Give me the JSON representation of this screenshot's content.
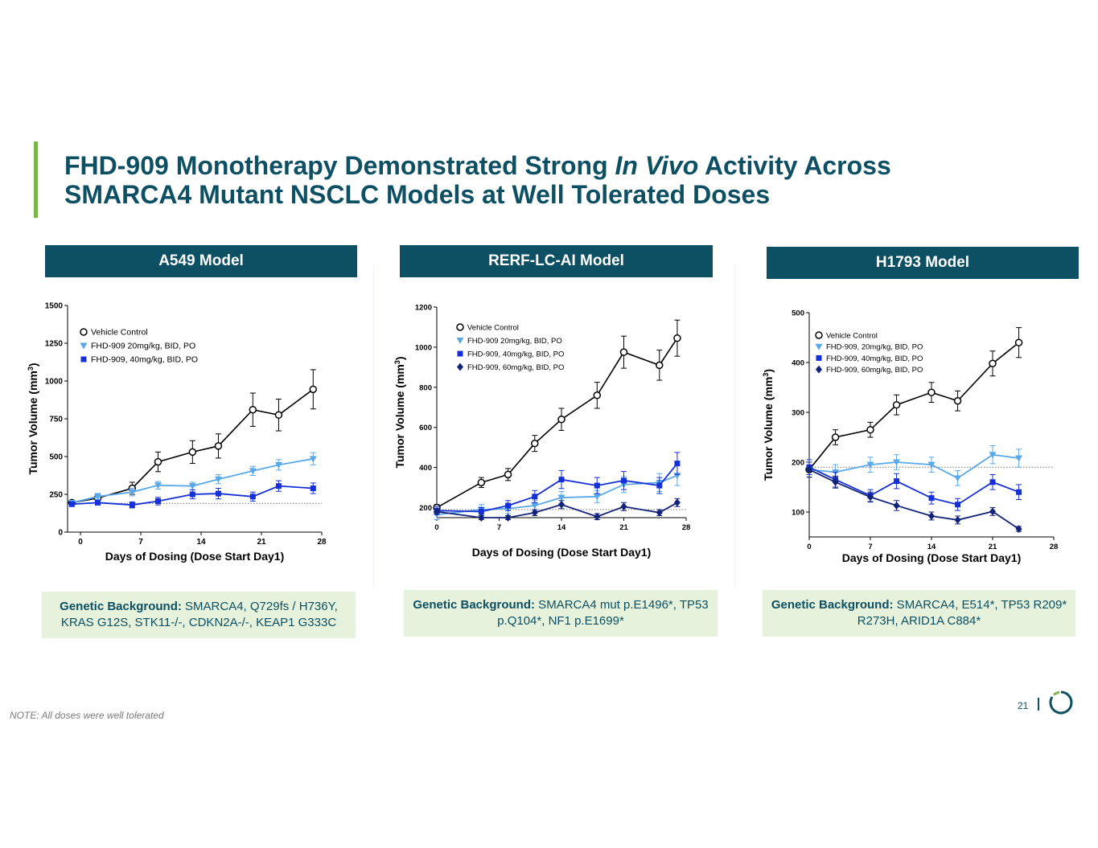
{
  "title": {
    "line1_a": "FHD-909 Monotherapy Demonstrated Strong ",
    "line1_em": "In Vivo",
    "line1_b": " Activity Across",
    "line2": "SMARCA4 Mutant NSCLC Models at Well Tolerated Doses"
  },
  "colors": {
    "brand_teal": "#0d4f63",
    "accent_green": "#7ab648",
    "panel_bg": "#e6f2dc",
    "vehicle": "#000000",
    "dose20": "#5aa8e8",
    "dose40": "#1530d8",
    "dose60": "#13237a"
  },
  "panels": [
    {
      "header": "A549 Model",
      "genetic_label": "Genetic Background:",
      "genetic_text": " SMARCA4, Q729fs / H736Y, KRAS G12S, STK11-/-, CDKN2A-/-, KEAP1 G333C"
    },
    {
      "header": "RERF-LC-AI Model",
      "genetic_label": "Genetic Background:",
      "genetic_text": " SMARCA4 mut p.E1496*, TP53 p.Q104*, NF1 p.E1699*"
    },
    {
      "header": "H1793 Model",
      "genetic_label": "Genetic Background:",
      "genetic_text": " SMARCA4, E514*, TP53 R209* R273H, ARID1A C884*"
    }
  ],
  "note": "NOTE: All doses were well tolerated",
  "page_number": "21",
  "icons": {
    "logo": "ring-logo-icon"
  },
  "chart_data": [
    {
      "type": "line",
      "xlabel": "Days of Dosing (Dose Start Day1)",
      "ylabel": "Tumor Volume (mm",
      "ylabel_sup": "3",
      "ylabel_close": ")",
      "xlim": [
        -1.5,
        28
      ],
      "ylim": [
        0,
        1500
      ],
      "xticks": [
        0,
        7,
        14,
        21,
        28
      ],
      "yticks": [
        0,
        250,
        500,
        750,
        1000,
        1250,
        1500
      ],
      "baseline": 190,
      "legend_position": "top-left",
      "series": [
        {
          "name": "Vehicle Control",
          "marker": "open-circle",
          "color": "#000000",
          "x": [
            -1,
            2,
            6,
            9,
            13,
            16,
            20,
            23,
            27
          ],
          "y": [
            195,
            225,
            290,
            465,
            530,
            570,
            810,
            775,
            945
          ],
          "err": [
            15,
            30,
            40,
            65,
            75,
            80,
            110,
            105,
            130
          ]
        },
        {
          "name": "FHD-909 20mg/kg, BID, PO",
          "marker": "triangle-down",
          "color": "#5aa8e8",
          "x": [
            -1,
            2,
            6,
            9,
            13,
            16,
            20,
            23,
            27
          ],
          "y": [
            195,
            235,
            265,
            310,
            305,
            350,
            405,
            445,
            485
          ],
          "err": [
            15,
            20,
            25,
            25,
            25,
            30,
            30,
            35,
            40
          ]
        },
        {
          "name": "FHD-909, 40mg/kg, BID, PO",
          "marker": "square",
          "color": "#1530d8",
          "x": [
            -1,
            2,
            6,
            9,
            13,
            16,
            20,
            23,
            27
          ],
          "y": [
            185,
            195,
            180,
            205,
            250,
            255,
            235,
            305,
            290
          ],
          "err": [
            15,
            15,
            20,
            25,
            30,
            35,
            30,
            35,
            35
          ]
        }
      ]
    },
    {
      "type": "line",
      "xlabel": "Days of Dosing (Dose Start Day1)",
      "ylabel": "Tumor Volume (mm",
      "ylabel_sup": "3",
      "ylabel_close": ")",
      "xlim": [
        0,
        28
      ],
      "ylim": [
        0,
        1200
      ],
      "ymin_axis": 200,
      "xticks": [
        0,
        7,
        14,
        21,
        28
      ],
      "yticks": [
        200,
        400,
        600,
        800,
        1000,
        1200
      ],
      "baseline": 190,
      "legend_position": "top-left",
      "series": [
        {
          "name": "Vehicle Control",
          "marker": "open-circle",
          "color": "#000000",
          "x": [
            0,
            5,
            8,
            11,
            14,
            18,
            21,
            25,
            27
          ],
          "y": [
            200,
            325,
            365,
            520,
            640,
            760,
            975,
            910,
            1045
          ],
          "err": [
            15,
            25,
            30,
            40,
            55,
            65,
            80,
            75,
            90
          ]
        },
        {
          "name": "FHD-909 20mg/kg, BID, PO",
          "marker": "triangle-down",
          "color": "#5aa8e8",
          "x": [
            0,
            5,
            8,
            11,
            14,
            18,
            21,
            25,
            27
          ],
          "y": [
            165,
            190,
            195,
            210,
            250,
            255,
            315,
            325,
            360
          ],
          "err": [
            25,
            25,
            25,
            25,
            30,
            30,
            40,
            45,
            50
          ]
        },
        {
          "name": "FHD-909, 40mg/kg, BID, PO",
          "marker": "square",
          "color": "#1530d8",
          "x": [
            0,
            5,
            8,
            11,
            14,
            18,
            21,
            25,
            27
          ],
          "y": [
            185,
            180,
            210,
            255,
            340,
            310,
            335,
            310,
            420
          ],
          "err": [
            20,
            20,
            25,
            30,
            45,
            40,
            45,
            40,
            55
          ]
        },
        {
          "name": "FHD-909, 60mg/kg, BID, PO",
          "marker": "diamond",
          "color": "#13237a",
          "x": [
            0,
            5,
            8,
            11,
            14,
            18,
            21,
            25,
            27
          ],
          "y": [
            180,
            150,
            150,
            175,
            215,
            155,
            205,
            175,
            225
          ],
          "err": [
            10,
            10,
            10,
            15,
            20,
            15,
            20,
            15,
            20
          ]
        }
      ]
    },
    {
      "type": "line",
      "xlabel": "Days of Dosing (Dose Start Day1)",
      "ylabel": "Tumor Volume (mm",
      "ylabel_sup": "3",
      "ylabel_close": ")",
      "xlim": [
        0,
        28
      ],
      "ylim": [
        50,
        500
      ],
      "xticks": [
        0,
        7,
        14,
        21,
        28
      ],
      "yticks": [
        100,
        200,
        300,
        400,
        500
      ],
      "baseline": 190,
      "legend_position": "top-left",
      "series": [
        {
          "name": "Vehicle Control",
          "marker": "open-circle",
          "color": "#000000",
          "x": [
            0,
            3,
            7,
            10,
            14,
            17,
            21,
            24
          ],
          "y": [
            185,
            250,
            265,
            315,
            340,
            323,
            398,
            440
          ],
          "err": [
            15,
            15,
            15,
            20,
            20,
            20,
            25,
            30
          ]
        },
        {
          "name": "FHD-909, 20mg/kg, BID, PO",
          "marker": "triangle-down",
          "color": "#5aa8e8",
          "x": [
            0,
            3,
            7,
            10,
            14,
            17,
            21,
            24
          ],
          "y": [
            185,
            180,
            195,
            200,
            195,
            168,
            215,
            208
          ],
          "err": [
            15,
            15,
            15,
            15,
            15,
            15,
            18,
            18
          ]
        },
        {
          "name": "FHD-909, 40mg/kg, BID, PO",
          "marker": "square",
          "color": "#1530d8",
          "x": [
            0,
            3,
            7,
            10,
            14,
            17,
            21,
            24
          ],
          "y": [
            190,
            165,
            133,
            162,
            128,
            115,
            160,
            140
          ],
          "err": [
            15,
            15,
            12,
            15,
            12,
            12,
            15,
            15
          ]
        },
        {
          "name": "FHD-909, 60mg/kg, BID, PO",
          "marker": "diamond",
          "color": "#13237a",
          "x": [
            0,
            3,
            7,
            10,
            14,
            17,
            21,
            24
          ],
          "y": [
            185,
            160,
            130,
            113,
            92,
            84,
            101,
            66
          ],
          "err": [
            15,
            12,
            10,
            10,
            8,
            8,
            8,
            5
          ]
        }
      ]
    }
  ]
}
